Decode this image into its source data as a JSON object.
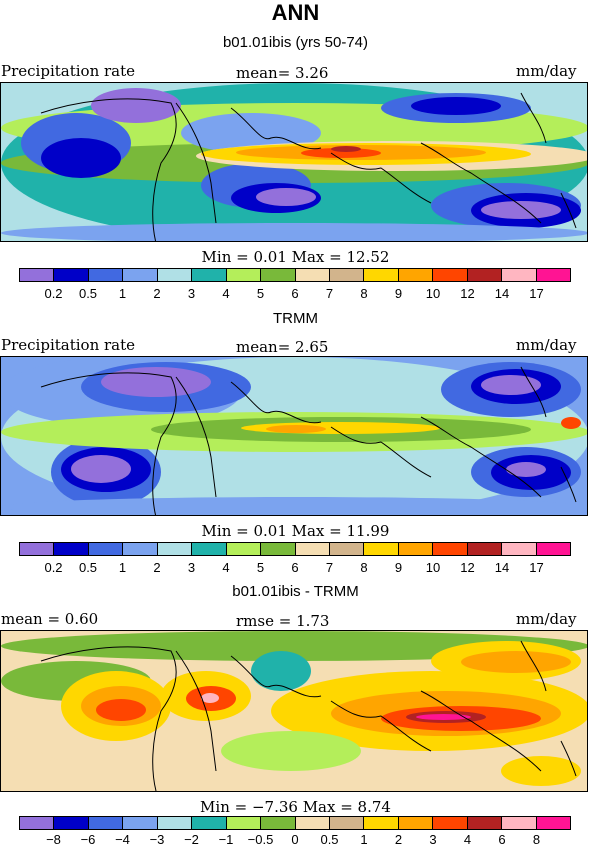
{
  "title": "ANN",
  "panels": [
    {
      "subtitle": "b01.01ibis (yrs 50-74)",
      "left_label": "Precipitation rate",
      "mid_label": "mean=   3.26",
      "right_label": "mm/day",
      "stats": "Min =   0.01 Max =  12.52",
      "colorbar": {
        "colors": [
          "#9370db",
          "#0000c8",
          "#4169e1",
          "#7ba3ef",
          "#b0e0e6",
          "#20b2aa",
          "#b4ee5a",
          "#79b93a",
          "#f5deb3",
          "#d2b48c",
          "#ffd700",
          "#ffa500",
          "#ff4500",
          "#b22222",
          "#ffb6c1",
          "#ff1493"
        ],
        "labels": [
          "0.2",
          "0.5",
          "1",
          "2",
          "3",
          "4",
          "5",
          "6",
          "7",
          "8",
          "9",
          "10",
          "12",
          "14",
          "17"
        ]
      },
      "field": "model"
    },
    {
      "subtitle": "TRMM",
      "left_label": "Precipitation rate",
      "mid_label": "mean=   2.65",
      "right_label": "mm/day",
      "stats": "Min =   0.01 Max =  11.99",
      "colorbar": {
        "colors": [
          "#9370db",
          "#0000c8",
          "#4169e1",
          "#7ba3ef",
          "#b0e0e6",
          "#20b2aa",
          "#b4ee5a",
          "#79b93a",
          "#f5deb3",
          "#d2b48c",
          "#ffd700",
          "#ffa500",
          "#ff4500",
          "#b22222",
          "#ffb6c1",
          "#ff1493"
        ],
        "labels": [
          "0.2",
          "0.5",
          "1",
          "2",
          "3",
          "4",
          "5",
          "6",
          "7",
          "8",
          "9",
          "10",
          "12",
          "14",
          "17"
        ]
      },
      "field": "obs"
    },
    {
      "subtitle": "b01.01ibis - TRMM",
      "left_label": "mean =    0.60",
      "mid_label": "rmse =    1.73",
      "right_label": "mm/day",
      "stats": "Min =  −7.36 Max =    8.74",
      "colorbar": {
        "colors": [
          "#9370db",
          "#0000c8",
          "#4169e1",
          "#7ba3ef",
          "#b0e0e6",
          "#20b2aa",
          "#b4ee5a",
          "#79b93a",
          "#f5deb3",
          "#d2b48c",
          "#ffd700",
          "#ffa500",
          "#ff4500",
          "#b22222",
          "#ffb6c1",
          "#ff1493"
        ],
        "labels": [
          "−8",
          "−6",
          "−4",
          "−3",
          "−2",
          "−1",
          "−0.5",
          "0",
          "0.5",
          "1",
          "2",
          "3",
          "4",
          "6",
          "8"
        ]
      },
      "field": "diff"
    }
  ]
}
